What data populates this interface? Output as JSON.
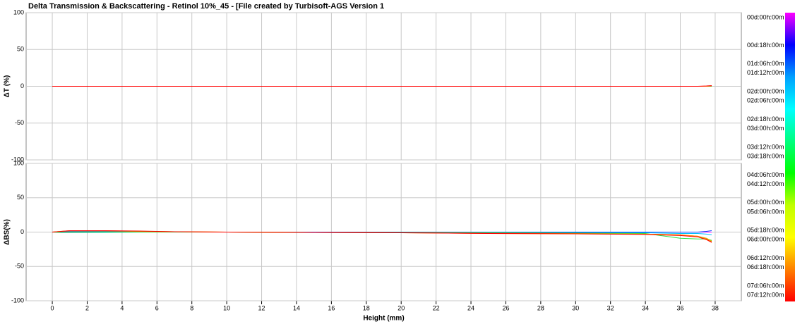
{
  "title": "Delta Transmission & Backscattering - Retinol 10%_45 - [File created by Turbisoft-AGS Version 1",
  "chart_data": [
    {
      "type": "line",
      "ylabel": "ΔT (%)",
      "ylim": [
        -100,
        100
      ],
      "yticks": [
        -100,
        -50,
        0,
        50,
        100
      ],
      "xlim": [
        -1.5,
        39.5
      ],
      "xticks": [
        0,
        2,
        4,
        6,
        8,
        10,
        12,
        14,
        16,
        18,
        20,
        22,
        24,
        26,
        28,
        30,
        32,
        34,
        36,
        38
      ],
      "grid": true,
      "x": [
        0,
        0.5,
        1,
        3,
        5,
        7,
        10,
        15,
        20,
        25,
        30,
        34,
        36,
        37,
        37.5,
        37.8
      ],
      "series": [
        {
          "color": "#ff00ff",
          "values": [
            0,
            0,
            0,
            0,
            0,
            0,
            0,
            0,
            0,
            0,
            0,
            0,
            0,
            0,
            0,
            0
          ]
        },
        {
          "color": "#00c000",
          "values": [
            0,
            0,
            0,
            0,
            0,
            0,
            0,
            0,
            0,
            0,
            0,
            0,
            0,
            0,
            0,
            0
          ]
        },
        {
          "color": "#ff8000",
          "values": [
            0,
            0,
            0,
            0,
            0,
            0,
            0,
            0,
            0,
            0,
            0,
            0,
            0,
            0,
            0,
            0.5
          ]
        },
        {
          "color": "#ff0000",
          "values": [
            0,
            0,
            0,
            0,
            0,
            0,
            0,
            0,
            0,
            0,
            0,
            0,
            0,
            0,
            0.5,
            1
          ]
        }
      ]
    },
    {
      "type": "line",
      "ylabel": "ΔBS(%)",
      "xlabel": "Height (mm)",
      "ylim": [
        -100,
        100
      ],
      "yticks": [
        -100,
        -50,
        0,
        50,
        100
      ],
      "xlim": [
        -1.5,
        39.5
      ],
      "xticks": [
        0,
        2,
        4,
        6,
        8,
        10,
        12,
        14,
        16,
        18,
        20,
        22,
        24,
        26,
        28,
        30,
        32,
        34,
        36,
        38
      ],
      "grid": true,
      "x": [
        0,
        0.5,
        1,
        3,
        5,
        7,
        10,
        15,
        20,
        25,
        30,
        34,
        36,
        37,
        37.5,
        37.8
      ],
      "series": [
        {
          "color": "#ff00ff",
          "values": [
            0,
            0,
            0,
            0,
            0,
            0,
            0,
            0,
            0,
            0,
            0,
            0,
            0,
            0,
            0,
            0
          ]
        },
        {
          "color": "#0040ff",
          "values": [
            0,
            0.5,
            0.5,
            0.5,
            0.5,
            0,
            0,
            0,
            0,
            0,
            0,
            0,
            0,
            0,
            1,
            2
          ]
        },
        {
          "color": "#00c0ff",
          "values": [
            0,
            -0.5,
            -0.5,
            -0.5,
            0,
            0,
            0,
            -0.5,
            -0.5,
            -0.5,
            -1,
            -1,
            -2,
            -2,
            -3,
            -4
          ]
        },
        {
          "color": "#20e040",
          "values": [
            0,
            -0.5,
            -0.5,
            0,
            0,
            0,
            0,
            -0.5,
            -0.5,
            -1,
            -1.5,
            -2,
            -9,
            -10,
            -10,
            -12
          ]
        },
        {
          "color": "#c0c000",
          "values": [
            0,
            1,
            1.5,
            1.5,
            1,
            0.5,
            0,
            -0.5,
            -1,
            -1.5,
            -2,
            -3,
            -4,
            -6,
            -9,
            -13
          ]
        },
        {
          "color": "#ff8000",
          "values": [
            0,
            1,
            2,
            2,
            1,
            0.5,
            0,
            -0.5,
            -1,
            -2,
            -2.5,
            -3,
            -4,
            -6,
            -10,
            -14
          ]
        },
        {
          "color": "#ff0000",
          "values": [
            0,
            1,
            2,
            2,
            1.5,
            0.5,
            0,
            -0.5,
            -1,
            -2,
            -2.5,
            -3.5,
            -5,
            -7,
            -11,
            -15
          ]
        }
      ]
    }
  ],
  "colorbar": {
    "colors": [
      "#ff00ff",
      "#0000ff",
      "#00a0ff",
      "#00ffff",
      "#00ff80",
      "#00ff00",
      "#c0ff00",
      "#ffff00",
      "#ff8000",
      "#ff0000"
    ],
    "labels": [
      "00d:00h:00m",
      "00d:18h:00m",
      "01d:06h:00m",
      "01d:12h:00m",
      "02d:00h:00m",
      "02d:06h:00m",
      "02d:18h:00m",
      "03d:00h:00m",
      "03d:12h:00m",
      "03d:18h:00m",
      "04d:06h:00m",
      "04d:12h:00m",
      "05d:00h:00m",
      "05d:06h:00m",
      "05d:18h:00m",
      "06d:00h:00m",
      "06d:12h:00m",
      "06d:18h:00m",
      "07d:06h:00m",
      "07d:12h:00m"
    ]
  }
}
